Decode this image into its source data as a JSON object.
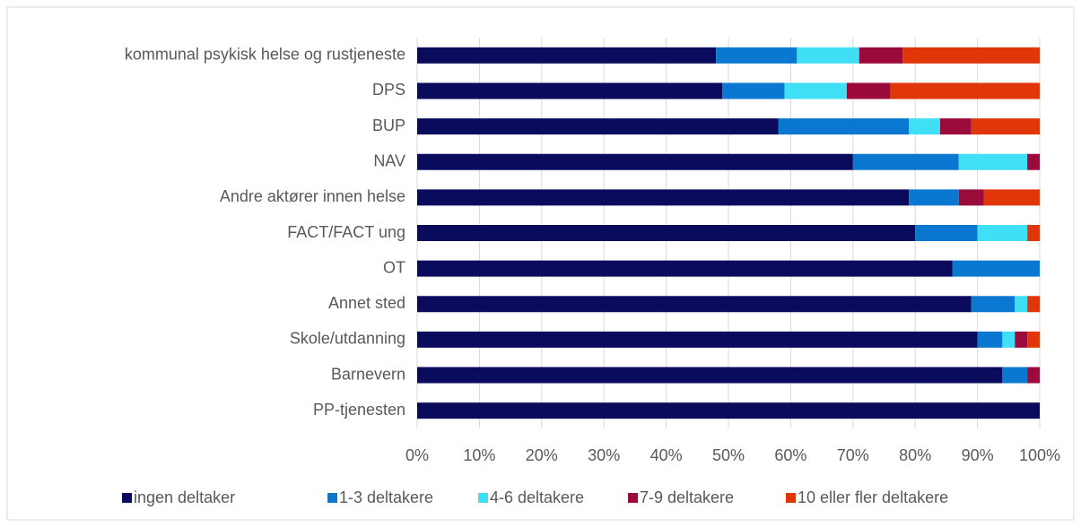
{
  "chart_data": {
    "type": "stacked_barh",
    "categories": [
      "kommunal psykisk helse og rustjeneste",
      "DPS",
      "BUP",
      "NAV",
      "Andre aktører innen helse",
      "FACT/FACT ung",
      "OT",
      "Annet sted",
      "Skole/utdanning",
      "Barnevern",
      "PP-tjenesten"
    ],
    "series": [
      {
        "name": "ingen deltaker",
        "color": "#0b0b5e",
        "values": [
          48,
          49,
          58,
          70,
          79,
          80,
          86,
          89,
          90,
          94,
          100
        ]
      },
      {
        "name": "1-3 deltakere",
        "color": "#0a78d0",
        "values": [
          13,
          10,
          21,
          17,
          8,
          10,
          14,
          7,
          4,
          4,
          0
        ]
      },
      {
        "name": "4-6 deltakere",
        "color": "#3fdff5",
        "values": [
          10,
          10,
          5,
          11,
          0,
          8,
          0,
          2,
          2,
          0,
          0
        ]
      },
      {
        "name": "7-9 deltakere",
        "color": "#9a0a3b",
        "values": [
          7,
          7,
          5,
          2,
          4,
          0,
          0,
          0,
          2,
          2,
          0
        ]
      },
      {
        "name": "10 eller fler deltakere",
        "color": "#e0360a",
        "values": [
          22,
          24,
          11,
          0,
          9,
          2,
          0,
          2,
          2,
          0,
          0
        ]
      }
    ],
    "xlim": [
      0,
      100
    ],
    "xticks": [
      {
        "value": 0,
        "label": "0%"
      },
      {
        "value": 10,
        "label": "10%"
      },
      {
        "value": 20,
        "label": "20%"
      },
      {
        "value": 30,
        "label": "30%"
      },
      {
        "value": 40,
        "label": "40%"
      },
      {
        "value": 50,
        "label": "50%"
      },
      {
        "value": 60,
        "label": "60%"
      },
      {
        "value": 70,
        "label": "70%"
      },
      {
        "value": 80,
        "label": "80%"
      },
      {
        "value": 90,
        "label": "90%"
      },
      {
        "value": 100,
        "label": "100%"
      }
    ],
    "grid": true,
    "legend": "bottom"
  }
}
